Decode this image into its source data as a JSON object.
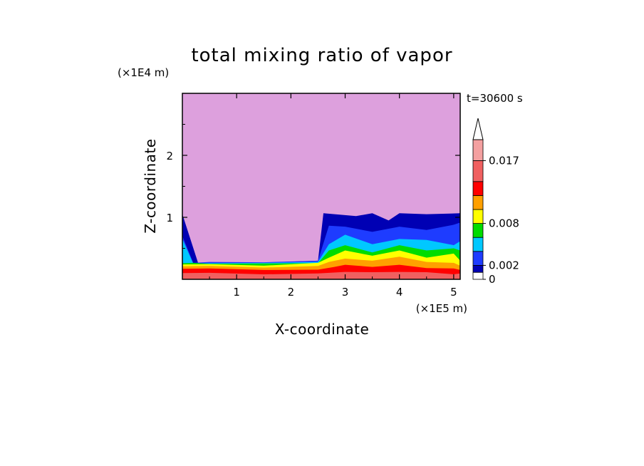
{
  "chart_data": {
    "type": "heatmap",
    "title": "total mixing ratio of vapor",
    "xlabel": "X-coordinate",
    "ylabel": "Z-coordinate",
    "x_unit": "(×1E5 m)",
    "y_unit": "(×1E4 m)",
    "time_label": "t=30600 s",
    "xlim": [
      0,
      5.12
    ],
    "ylim": [
      0,
      3
    ],
    "x_ticks": [
      "1",
      "2",
      "3",
      "4",
      "5"
    ],
    "y_ticks": [
      "1",
      "2"
    ],
    "colorbar": {
      "tick_labels": [
        "0",
        "0.002",
        "0.008",
        "0.017"
      ],
      "tick_values": [
        0,
        0.002,
        0.008,
        0.017
      ],
      "levels": [
        0,
        0.001,
        0.002,
        0.004,
        0.006,
        0.008,
        0.01,
        0.012,
        0.014,
        0.017,
        0.02
      ],
      "colors": [
        "#ffffff",
        "#0000b4",
        "#1e3cff",
        "#00c8ff",
        "#00dc00",
        "#ffff00",
        "#ffa000",
        "#ff0000",
        "#f06060",
        "#f4a0a0"
      ],
      "extend": "max",
      "over_color": "#ffffff"
    },
    "background_color": "#dda0dd",
    "layers": [
      {
        "color": "#0000b4",
        "x": [
          0,
          0.3,
          2.5,
          2.6,
          3.2,
          3.5,
          3.8,
          4.0,
          4.5,
          5.12
        ],
        "top": [
          1.05,
          0.22,
          0.3,
          1.05,
          1.02,
          1.05,
          0.95,
          1.05,
          1.05,
          1.05
        ]
      },
      {
        "color": "#1e3cff",
        "x": [
          0,
          0.2,
          0.5,
          1.5,
          2.5,
          2.7,
          3.0,
          3.5,
          4.0,
          4.5,
          5.0,
          5.12
        ],
        "top": [
          0.7,
          0.25,
          0.28,
          0.26,
          0.3,
          0.85,
          0.85,
          0.75,
          0.85,
          0.78,
          0.88,
          0.9
        ]
      },
      {
        "color": "#00c8ff",
        "x": [
          0,
          0.2,
          0.5,
          1.5,
          2.5,
          2.7,
          3.0,
          3.5,
          4.0,
          4.5,
          5.0,
          5.12
        ],
        "top": [
          0.65,
          0.24,
          0.26,
          0.25,
          0.28,
          0.55,
          0.72,
          0.55,
          0.65,
          0.62,
          0.55,
          0.6
        ]
      },
      {
        "color": "#00dc00",
        "x": [
          0,
          0.2,
          0.5,
          1.5,
          2.5,
          2.7,
          3.0,
          3.5,
          4.0,
          4.5,
          5.0,
          5.12
        ],
        "top": [
          0.26,
          0.25,
          0.25,
          0.24,
          0.26,
          0.45,
          0.55,
          0.42,
          0.55,
          0.45,
          0.5,
          0.45
        ]
      },
      {
        "color": "#ffff00",
        "x": [
          0,
          0.5,
          1.5,
          2.5,
          2.7,
          3.0,
          3.5,
          4.0,
          4.5,
          5.0,
          5.12
        ],
        "top": [
          0.24,
          0.23,
          0.22,
          0.25,
          0.35,
          0.45,
          0.38,
          0.45,
          0.35,
          0.4,
          0.3
        ]
      },
      {
        "color": "#ffa000",
        "x": [
          0,
          0.5,
          1.5,
          2.5,
          2.7,
          3.0,
          3.5,
          4.0,
          4.5,
          5.0,
          5.12
        ],
        "top": [
          0.21,
          0.2,
          0.19,
          0.2,
          0.28,
          0.32,
          0.3,
          0.35,
          0.28,
          0.25,
          0.22
        ]
      },
      {
        "color": "#ff0000",
        "x": [
          0,
          0.5,
          1.5,
          2.5,
          2.8,
          3.0,
          3.5,
          4.0,
          4.5,
          5.0,
          5.12
        ],
        "top": [
          0.17,
          0.16,
          0.15,
          0.14,
          0.2,
          0.22,
          0.2,
          0.22,
          0.18,
          0.16,
          0.15
        ]
      },
      {
        "color": "#f06060",
        "x": [
          0,
          0.5,
          1.5,
          2.5,
          3.0,
          3.5,
          4.0,
          4.5,
          5.0,
          5.12
        ],
        "top": [
          0.1,
          0.09,
          0.08,
          0.08,
          0.12,
          0.1,
          0.12,
          0.1,
          0.08,
          0.08
        ]
      }
    ]
  }
}
